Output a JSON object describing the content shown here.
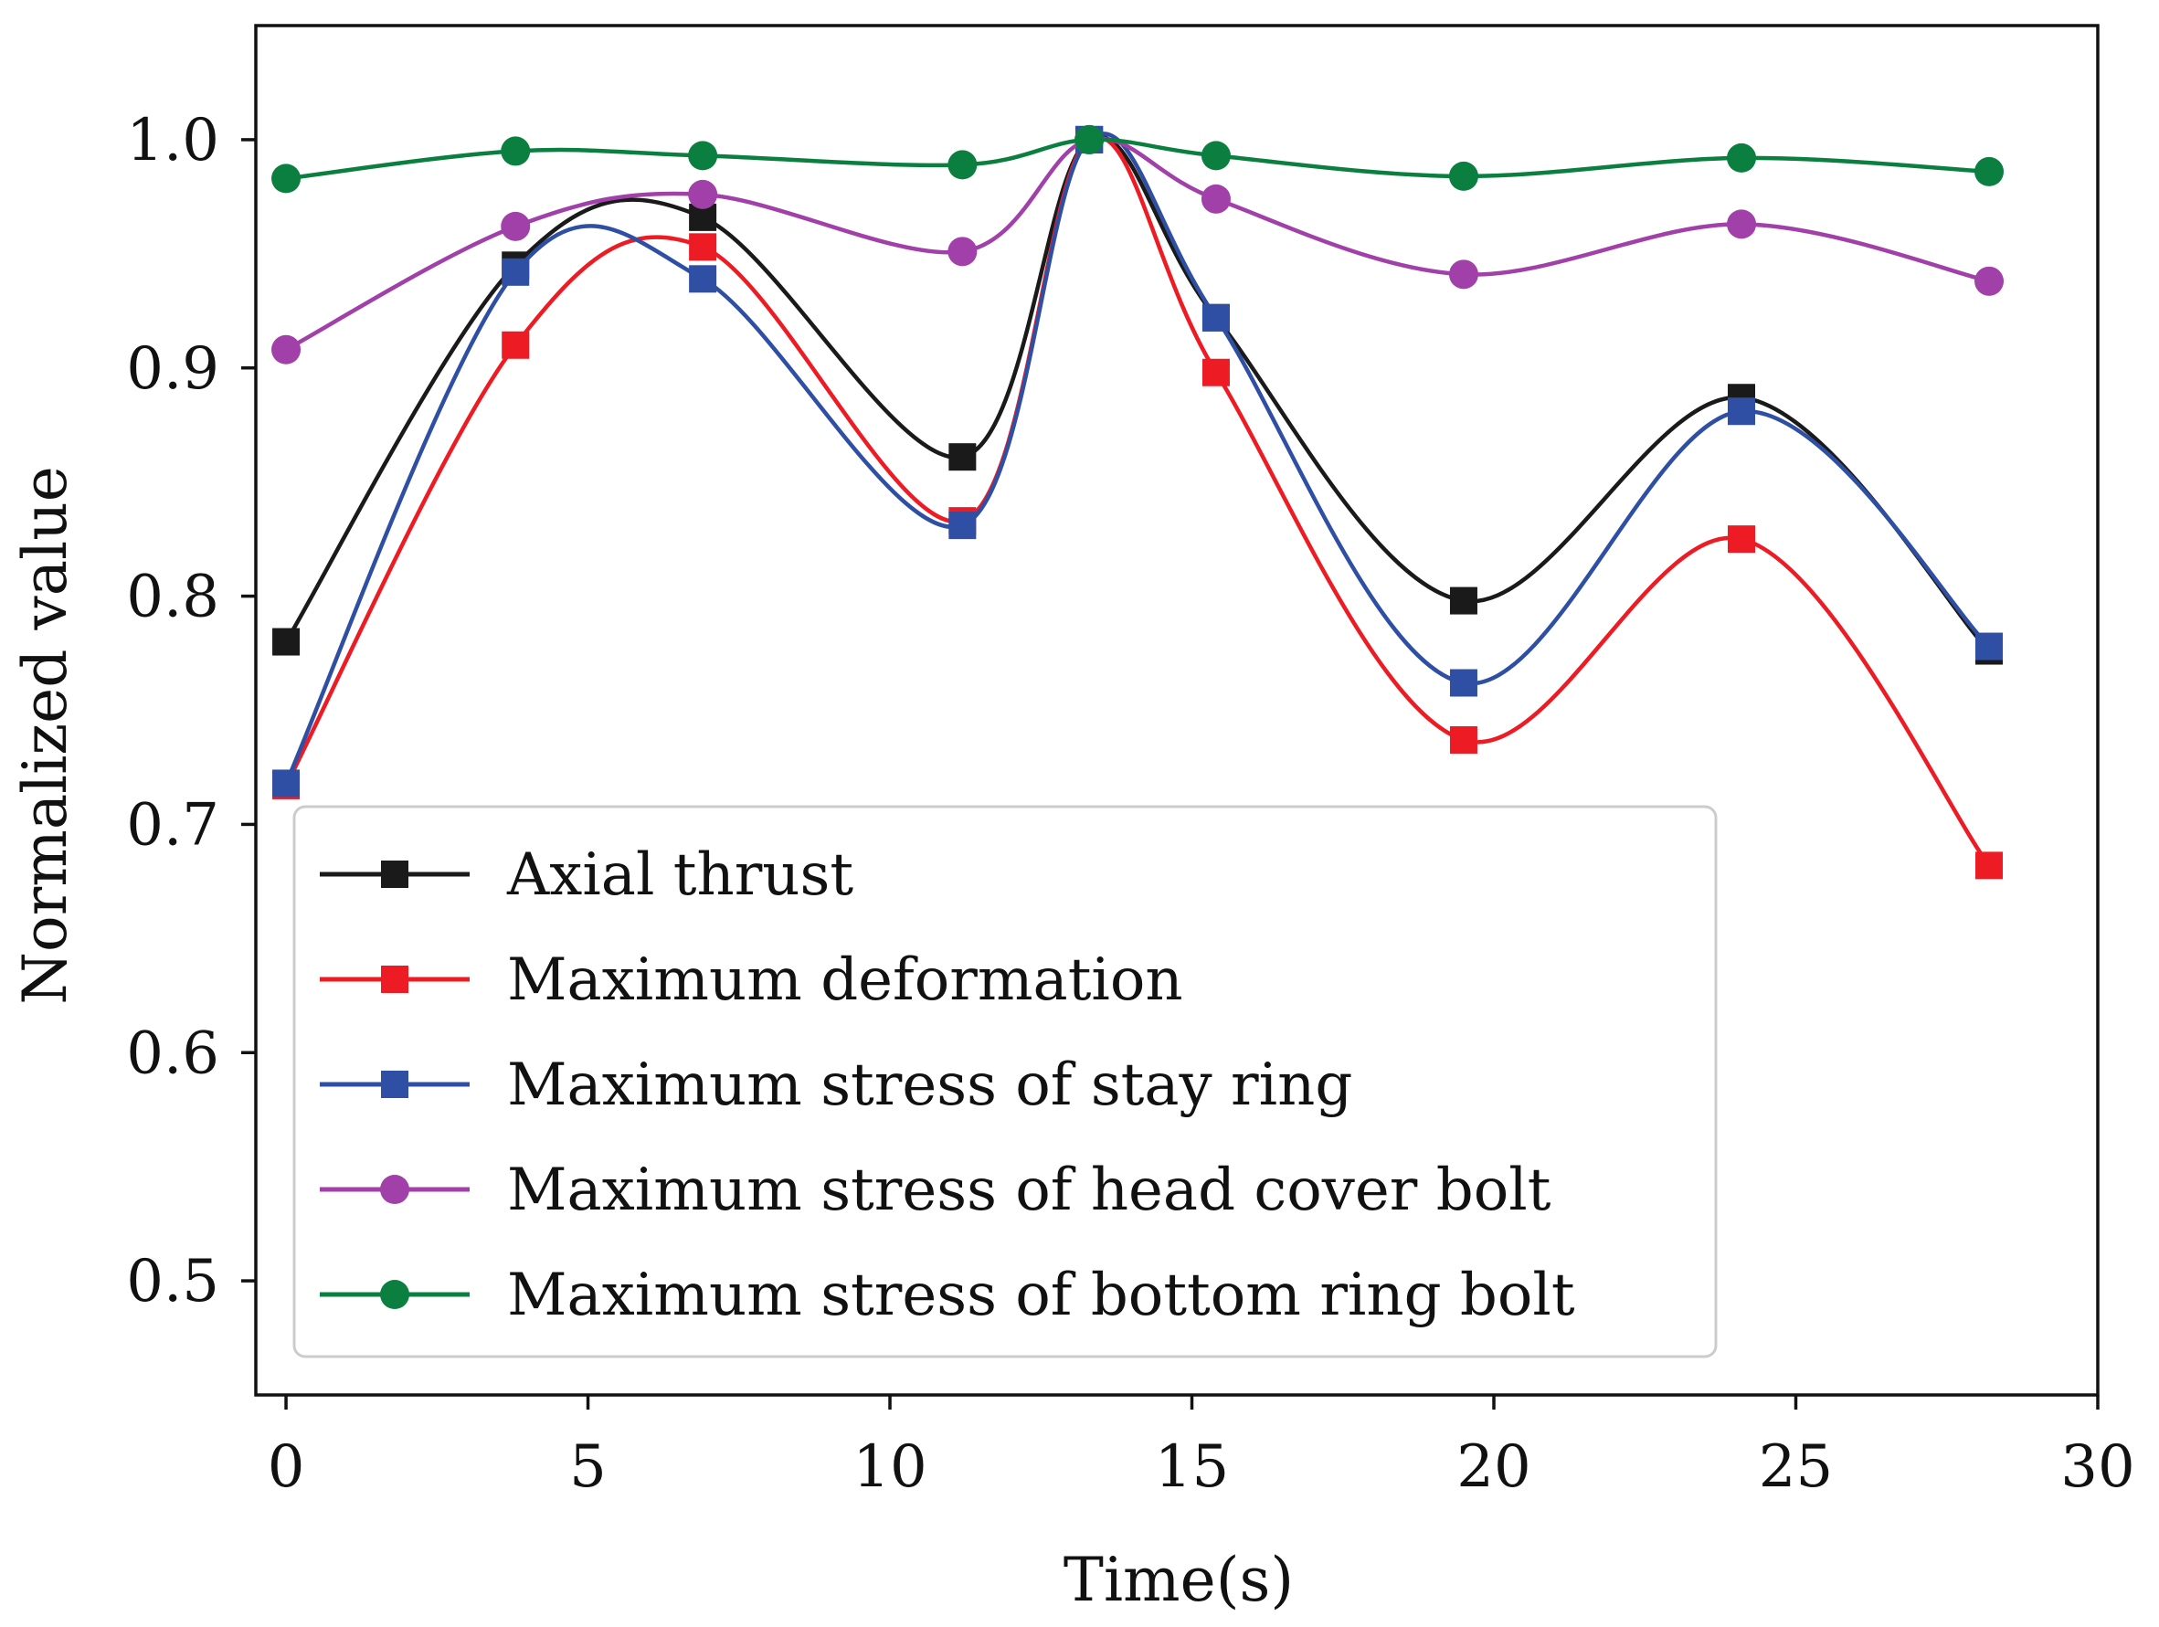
{
  "chart_data": {
    "type": "line",
    "title": "",
    "xlabel": "Time(s)",
    "ylabel": "Normalized value",
    "xlim": [
      -0.5,
      30
    ],
    "ylim": [
      0.45,
      1.05
    ],
    "xticks": [
      0,
      5,
      10,
      15,
      20,
      25,
      30
    ],
    "xtick_labels": [
      "0",
      "5",
      "10",
      "15",
      "20",
      "25",
      "30"
    ],
    "yticks": [
      0.5,
      0.6,
      0.7,
      0.8,
      0.9,
      1.0
    ],
    "ytick_labels": [
      "0.5",
      "0.6",
      "0.7",
      "0.8",
      "0.9",
      "1.0"
    ],
    "grid": false,
    "legend_position": "lower-left",
    "x": [
      0,
      3.8,
      6.9,
      11.2,
      13.3,
      15.4,
      19.5,
      24.1,
      28.2
    ],
    "series": [
      {
        "name": "Axial thrust",
        "color": "#1a1a1a",
        "marker": "square",
        "values": [
          0.78,
          0.945,
          0.966,
          0.861,
          1.0,
          0.922,
          0.798,
          0.887,
          0.776
        ]
      },
      {
        "name": "Maximum deformation",
        "color": "#ed1c24",
        "marker": "square",
        "values": [
          0.717,
          0.91,
          0.953,
          0.833,
          1.0,
          0.898,
          0.737,
          0.825,
          0.682
        ]
      },
      {
        "name": "Maximum stress of stay ring",
        "color": "#2e4fa3",
        "marker": "square",
        "values": [
          0.718,
          0.942,
          0.939,
          0.831,
          1.0,
          0.922,
          0.762,
          0.881,
          0.778
        ]
      },
      {
        "name": "Maximum stress of head cover bolt",
        "color": "#a040a8",
        "marker": "circle",
        "values": [
          0.908,
          0.962,
          0.976,
          0.951,
          1.0,
          0.974,
          0.941,
          0.963,
          0.938
        ]
      },
      {
        "name": "Maximum stress of bottom ring bolt",
        "color": "#0a7f3f",
        "marker": "circle",
        "values": [
          0.983,
          0.995,
          0.993,
          0.989,
          1.0,
          0.993,
          0.984,
          0.992,
          0.986
        ]
      }
    ]
  }
}
